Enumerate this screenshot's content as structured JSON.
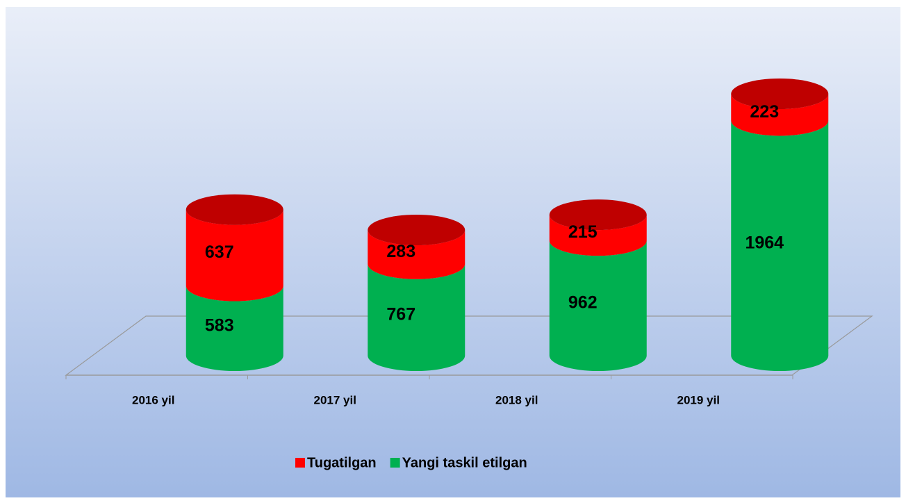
{
  "chart_data": {
    "type": "bar",
    "stacked": true,
    "categories": [
      "2016 yil",
      "2017 yil",
      "2018 yil",
      "2019 yil"
    ],
    "series": [
      {
        "name": "Yangi taskil etilgan",
        "color": "#00b050",
        "values": [
          583,
          767,
          962,
          1964
        ]
      },
      {
        "name": "Tugatilgan",
        "color": "#ff0000",
        "values": [
          637,
          283,
          215,
          223
        ]
      }
    ]
  }
}
